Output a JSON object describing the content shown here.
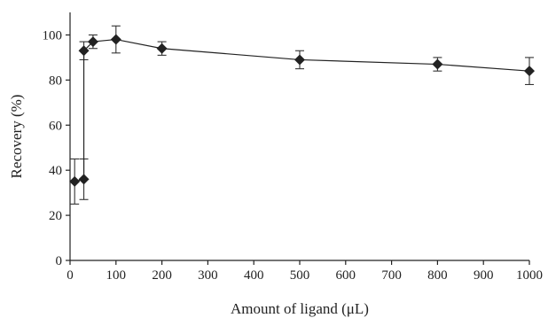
{
  "chart_data": {
    "type": "scatter",
    "xlabel": "Amount of ligand (μL)",
    "ylabel": "Recovery (%)",
    "xlim": [
      0,
      1000
    ],
    "ylim": [
      0,
      110
    ],
    "x_ticks": [
      0,
      100,
      200,
      300,
      400,
      500,
      600,
      700,
      800,
      900,
      1000
    ],
    "y_ticks": [
      0,
      20,
      40,
      60,
      80,
      100
    ],
    "grid": false,
    "marker": "diamond",
    "line": true,
    "colors": {
      "series": "#222222"
    },
    "series": [
      {
        "x": [
          10,
          30,
          30,
          50,
          100,
          200,
          500,
          800,
          1000
        ],
        "y": [
          35,
          36,
          93,
          97,
          98,
          94,
          89,
          87,
          84
        ],
        "error": [
          10,
          9,
          4,
          3,
          6,
          3,
          4,
          3,
          6
        ]
      }
    ]
  }
}
